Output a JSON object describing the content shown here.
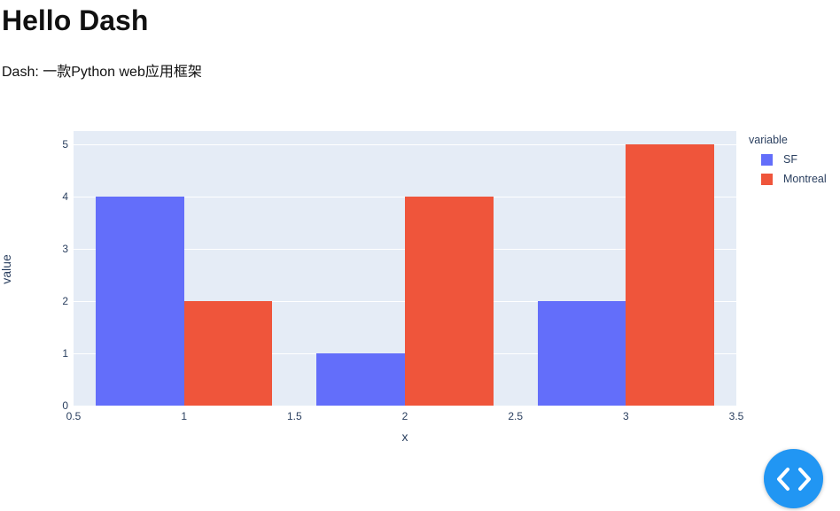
{
  "header": {
    "title": "Hello Dash",
    "subtitle": "Dash: 一款Python web应用框架"
  },
  "chart_data": {
    "type": "bar",
    "mode": "grouped",
    "title": "",
    "xlabel": "x",
    "ylabel": "value",
    "x": [
      1,
      2,
      3
    ],
    "series": [
      {
        "name": "SF",
        "color": "#636EFA",
        "values": [
          4,
          1,
          2
        ]
      },
      {
        "name": "Montreal",
        "color": "#EF553B",
        "values": [
          2,
          4,
          5
        ]
      }
    ],
    "legend_title": "variable",
    "legend_position": "top-right-outside",
    "xlim": [
      0.5,
      3.5
    ],
    "ylim": [
      0,
      5.26
    ],
    "x_ticks": [
      "0.5",
      "1",
      "1.5",
      "2",
      "2.5",
      "3",
      "3.5"
    ],
    "x_tick_values": [
      0.5,
      1,
      1.5,
      2,
      2.5,
      3,
      3.5
    ],
    "y_ticks": [
      "0",
      "1",
      "2",
      "3",
      "4",
      "5"
    ],
    "y_tick_values": [
      0,
      1,
      2,
      3,
      4,
      5
    ],
    "bar_width": 0.4,
    "grid": true,
    "plot_bg_color": "#E5ECF6",
    "grid_color": "#FFFFFF",
    "axis_text_color": "#2A3F5F"
  },
  "debug_button": {
    "icon": "code-brackets-icon",
    "color": "#2196F3"
  }
}
